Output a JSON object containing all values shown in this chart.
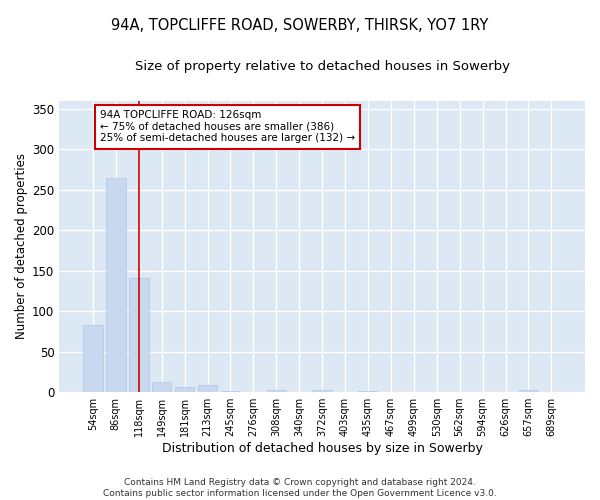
{
  "title": "94A, TOPCLIFFE ROAD, SOWERBY, THIRSK, YO7 1RY",
  "subtitle": "Size of property relative to detached houses in Sowerby",
  "xlabel": "Distribution of detached houses by size in Sowerby",
  "ylabel": "Number of detached properties",
  "bar_color": "#c8d8ee",
  "bar_edge_color": "#b0c8e8",
  "background_color": "#dde8f5",
  "grid_color": "#ffffff",
  "categories": [
    "54sqm",
    "86sqm",
    "118sqm",
    "149sqm",
    "181sqm",
    "213sqm",
    "245sqm",
    "276sqm",
    "308sqm",
    "340sqm",
    "372sqm",
    "403sqm",
    "435sqm",
    "467sqm",
    "499sqm",
    "530sqm",
    "562sqm",
    "594sqm",
    "626sqm",
    "657sqm",
    "689sqm"
  ],
  "values": [
    83,
    265,
    141,
    13,
    7,
    9,
    2,
    0,
    3,
    0,
    3,
    0,
    2,
    0,
    0,
    0,
    0,
    0,
    0,
    3,
    0
  ],
  "ylim": [
    0,
    360
  ],
  "yticks": [
    0,
    50,
    100,
    150,
    200,
    250,
    300,
    350
  ],
  "property_line_x": 2,
  "property_line_label": "94A TOPCLIFFE ROAD: 126sqm",
  "annotation_line1": "← 75% of detached houses are smaller (386)",
  "annotation_line2": "25% of semi-detached houses are larger (132) →",
  "annotation_box_color": "#ffffff",
  "annotation_box_edge": "#cc0000",
  "property_line_color": "#cc0000",
  "footer1": "Contains HM Land Registry data © Crown copyright and database right 2024.",
  "footer2": "Contains public sector information licensed under the Open Government Licence v3.0."
}
